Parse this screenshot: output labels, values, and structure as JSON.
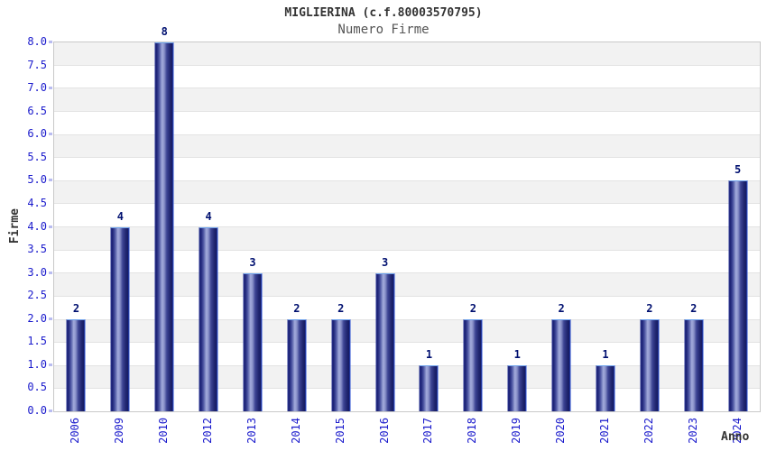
{
  "header": {
    "title": "MIGLIERINA (c.f.80003570795)",
    "subtitle": "Numero Firme"
  },
  "chart_data": {
    "type": "bar",
    "title": "MIGLIERINA (c.f.80003570795)",
    "subtitle": "Numero Firme",
    "xlabel": "Anno",
    "ylabel": "Firme",
    "categories": [
      "2006",
      "2009",
      "2010",
      "2012",
      "2013",
      "2014",
      "2015",
      "2016",
      "2017",
      "2018",
      "2019",
      "2020",
      "2021",
      "2022",
      "2023",
      "2024"
    ],
    "values": [
      2,
      4,
      8,
      4,
      3,
      2,
      2,
      3,
      1,
      2,
      1,
      2,
      1,
      2,
      2,
      5
    ],
    "ylim": [
      0,
      8
    ],
    "ytick_step": 0.5,
    "ytick_decimals": 1,
    "major_tick_step": 1,
    "legend": "none",
    "grid": "horizontal-bands",
    "colors": {
      "bar_dark": "#171c6a",
      "bar_highlight": "#a3abdc",
      "bar_border_right": "#2f55d8",
      "bar_border_top": "#6fa3ec",
      "tick_label": "#1a1acc",
      "value_label": "#001070",
      "band_gray": "#f2f2f2",
      "band_white": "#ffffff",
      "gridline": "#e3e3e3",
      "frame": "#c9c9c9",
      "title_text": "#333333",
      "subtitle_text": "#555555"
    }
  }
}
